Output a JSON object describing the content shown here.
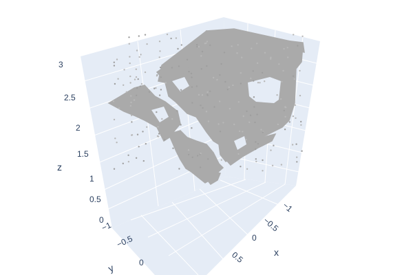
{
  "chart_data": {
    "type": "scatter",
    "title": "",
    "marker_color": "#aaaaaa",
    "axes": {
      "x": {
        "label": "x",
        "ticks": [
          "−1",
          "−0.5",
          "0",
          "0.5"
        ],
        "tick_values": [
          -1,
          -0.5,
          0,
          0.5
        ]
      },
      "y": {
        "label": "y",
        "ticks": [
          "−1",
          "−0.5",
          "0"
        ],
        "tick_values": [
          -1,
          -0.5,
          0
        ]
      },
      "z": {
        "label": "z",
        "ticks": [
          "0",
          "0.5",
          "1",
          "1.5",
          "2",
          "2.5",
          "3"
        ],
        "tick_values": [
          0,
          0.5,
          1,
          1.5,
          2,
          2.5,
          3
        ]
      }
    },
    "grid": true,
    "pane_color": "#e5ecf6",
    "description": "Dense 3D point cloud of a room-like surface (walls, floor, furniture patches), points rendered as small gray markers"
  }
}
